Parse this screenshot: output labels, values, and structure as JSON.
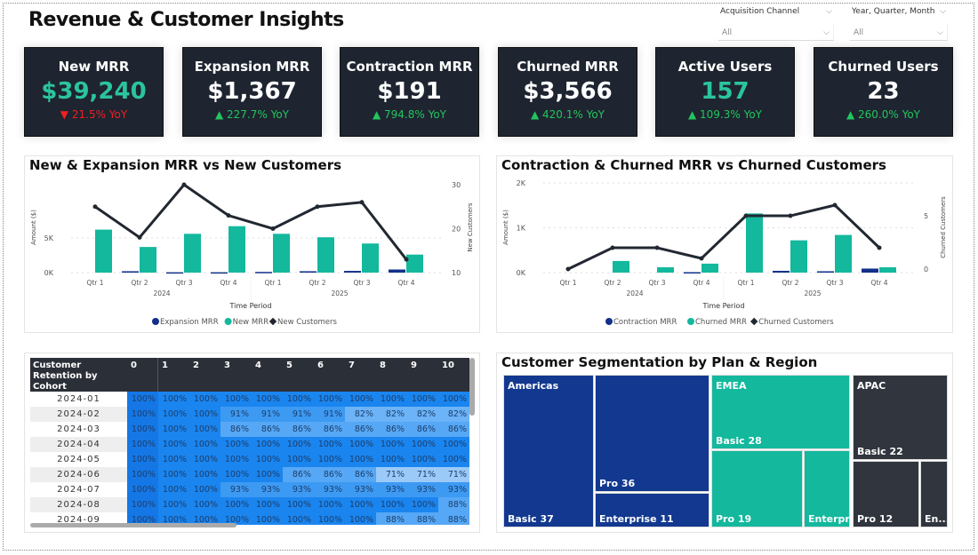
{
  "title": "Revenue & Customer Insights",
  "filters": [
    {
      "label": "Acquisition Channel",
      "value": "All"
    },
    {
      "label": "Year, Quarter, Month",
      "value": "All"
    }
  ],
  "kpis": [
    {
      "title": "New MRR",
      "value": "$39,240",
      "yoy": "21.5% YoY",
      "dir": "down",
      "value_color": "#2bc4a0"
    },
    {
      "title": "Expansion MRR",
      "value": "$1,367",
      "yoy": "227.7% YoY",
      "dir": "up",
      "value_color": "#ffffff"
    },
    {
      "title": "Contraction MRR",
      "value": "$191",
      "yoy": "794.8% YoY",
      "dir": "up",
      "value_color": "#ffffff"
    },
    {
      "title": "Churned MRR",
      "value": "$3,566",
      "yoy": "420.1% YoY",
      "dir": "up",
      "value_color": "#ffffff"
    },
    {
      "title": "Active Users",
      "value": "157",
      "yoy": "109.3% YoY",
      "dir": "up",
      "value_color": "#2bc4a0"
    },
    {
      "title": "Churned Users",
      "value": "23",
      "yoy": "260.0% YoY",
      "dir": "up",
      "value_color": "#ffffff"
    }
  ],
  "colors": {
    "up": "#22c55e",
    "down": "#ef2020",
    "navy": "#12308a",
    "teal": "#13b89d",
    "line": "#222831",
    "dark": "#30353e"
  },
  "chart_data": [
    {
      "type": "bar",
      "title": "New & Expansion MRR vs New Customers",
      "categories": [
        "Qtr 1",
        "Qtr 2",
        "Qtr 3",
        "Qtr 4",
        "Qtr 1",
        "Qtr 2",
        "Qtr 3",
        "Qtr 4"
      ],
      "years": [
        "2024",
        "2025"
      ],
      "xlabel": "Time Period",
      "ylabel": "Amount ($)",
      "y2label": "New Customers",
      "yticks": [
        {
          "v": 0,
          "l": "0K"
        },
        {
          "v": 5000,
          "l": "5K"
        }
      ],
      "y2ticks": [
        10,
        20,
        30
      ],
      "ylim": [
        0,
        8200
      ],
      "y2lim": [
        10,
        30
      ],
      "series": [
        {
          "name": "Expansion MRR",
          "kind": "bar",
          "values": [
            0,
            200,
            50,
            50,
            100,
            200,
            250,
            450
          ]
        },
        {
          "name": "New MRR",
          "kind": "bar",
          "values": [
            6200,
            3700,
            5600,
            6700,
            5600,
            5100,
            4200,
            2600
          ]
        },
        {
          "name": "New Customers",
          "kind": "line",
          "axis": "right",
          "values": [
            25,
            18,
            30,
            23,
            20,
            25,
            26,
            13
          ]
        }
      ],
      "legend": "bottom"
    },
    {
      "type": "bar",
      "title": "Contraction & Churned MRR vs Churned Customers",
      "categories": [
        "Qtr 1",
        "Qtr 2",
        "Qtr 3",
        "Qtr 4",
        "Qtr 1",
        "Qtr 2",
        "Qtr 3",
        "Qtr 4"
      ],
      "years": [
        "2024",
        "2025"
      ],
      "xlabel": "Time Period",
      "ylabel": "Amount ($)",
      "y2label": "Churned Customers",
      "yticks": [
        {
          "v": 0,
          "l": "0K"
        },
        {
          "v": 1000,
          "l": "1K"
        },
        {
          "v": 2000,
          "l": "2K"
        }
      ],
      "y2ticks": [
        0,
        5
      ],
      "ylim": [
        0,
        2000
      ],
      "y2lim": [
        0,
        6.5
      ],
      "series": [
        {
          "name": "Contraction MRR",
          "kind": "bar",
          "values": [
            0,
            0,
            0,
            10,
            0,
            40,
            30,
            90
          ]
        },
        {
          "name": "Churned MRR",
          "kind": "bar",
          "values": [
            0,
            260,
            120,
            200,
            1320,
            720,
            840,
            120
          ]
        },
        {
          "name": "Churned Customers",
          "kind": "line",
          "axis": "right",
          "values": [
            0,
            2,
            2,
            1,
            5,
            5,
            6,
            2
          ]
        }
      ],
      "legend": "bottom"
    }
  ],
  "retention": {
    "header": "Customer Retention by Cohort",
    "columns": [
      "0",
      "1",
      "2",
      "3",
      "4",
      "5",
      "6",
      "7",
      "8",
      "9",
      "10"
    ],
    "rows": [
      {
        "cohort": "2024-01",
        "values": [
          "100%",
          "100%",
          "100%",
          "100%",
          "100%",
          "100%",
          "100%",
          "100%",
          "100%",
          "100%",
          "100%"
        ]
      },
      {
        "cohort": "2024-02",
        "values": [
          "100%",
          "100%",
          "100%",
          "91%",
          "91%",
          "91%",
          "91%",
          "82%",
          "82%",
          "82%",
          "82%"
        ]
      },
      {
        "cohort": "2024-03",
        "values": [
          "100%",
          "100%",
          "100%",
          "86%",
          "86%",
          "86%",
          "86%",
          "86%",
          "86%",
          "86%",
          "86%"
        ]
      },
      {
        "cohort": "2024-04",
        "values": [
          "100%",
          "100%",
          "100%",
          "100%",
          "100%",
          "100%",
          "100%",
          "100%",
          "100%",
          "100%",
          "100%"
        ]
      },
      {
        "cohort": "2024-05",
        "values": [
          "100%",
          "100%",
          "100%",
          "100%",
          "100%",
          "100%",
          "100%",
          "100%",
          "100%",
          "100%",
          "100%"
        ]
      },
      {
        "cohort": "2024-06",
        "values": [
          "100%",
          "100%",
          "100%",
          "100%",
          "100%",
          "86%",
          "86%",
          "86%",
          "71%",
          "71%",
          "71%"
        ]
      },
      {
        "cohort": "2024-07",
        "values": [
          "100%",
          "100%",
          "100%",
          "93%",
          "93%",
          "93%",
          "93%",
          "93%",
          "93%",
          "93%",
          "93%"
        ]
      },
      {
        "cohort": "2024-08",
        "values": [
          "100%",
          "100%",
          "100%",
          "100%",
          "100%",
          "100%",
          "100%",
          "100%",
          "100%",
          "100%",
          "88%"
        ]
      },
      {
        "cohort": "2024-09",
        "values": [
          "100%",
          "100%",
          "100%",
          "100%",
          "100%",
          "100%",
          "100%",
          "100%",
          "88%",
          "88%",
          "88%"
        ]
      }
    ]
  },
  "treemap": {
    "title": "Customer Segmentation by Plan & Region",
    "regions": [
      {
        "name": "Americas",
        "color": "#12388f",
        "items": [
          {
            "label": "Basic 37"
          },
          {
            "label": "Pro 36"
          },
          {
            "label": "Enterprise 11"
          }
        ]
      },
      {
        "name": "EMEA",
        "color": "#13b89d",
        "items": [
          {
            "label": "Basic 28"
          },
          {
            "label": "Pro 19"
          },
          {
            "label": "Enterpr..."
          }
        ]
      },
      {
        "name": "APAC",
        "color": "#30353e",
        "items": [
          {
            "label": "Basic 22"
          },
          {
            "label": "Pro 12"
          },
          {
            "label": "En..."
          }
        ]
      }
    ]
  }
}
